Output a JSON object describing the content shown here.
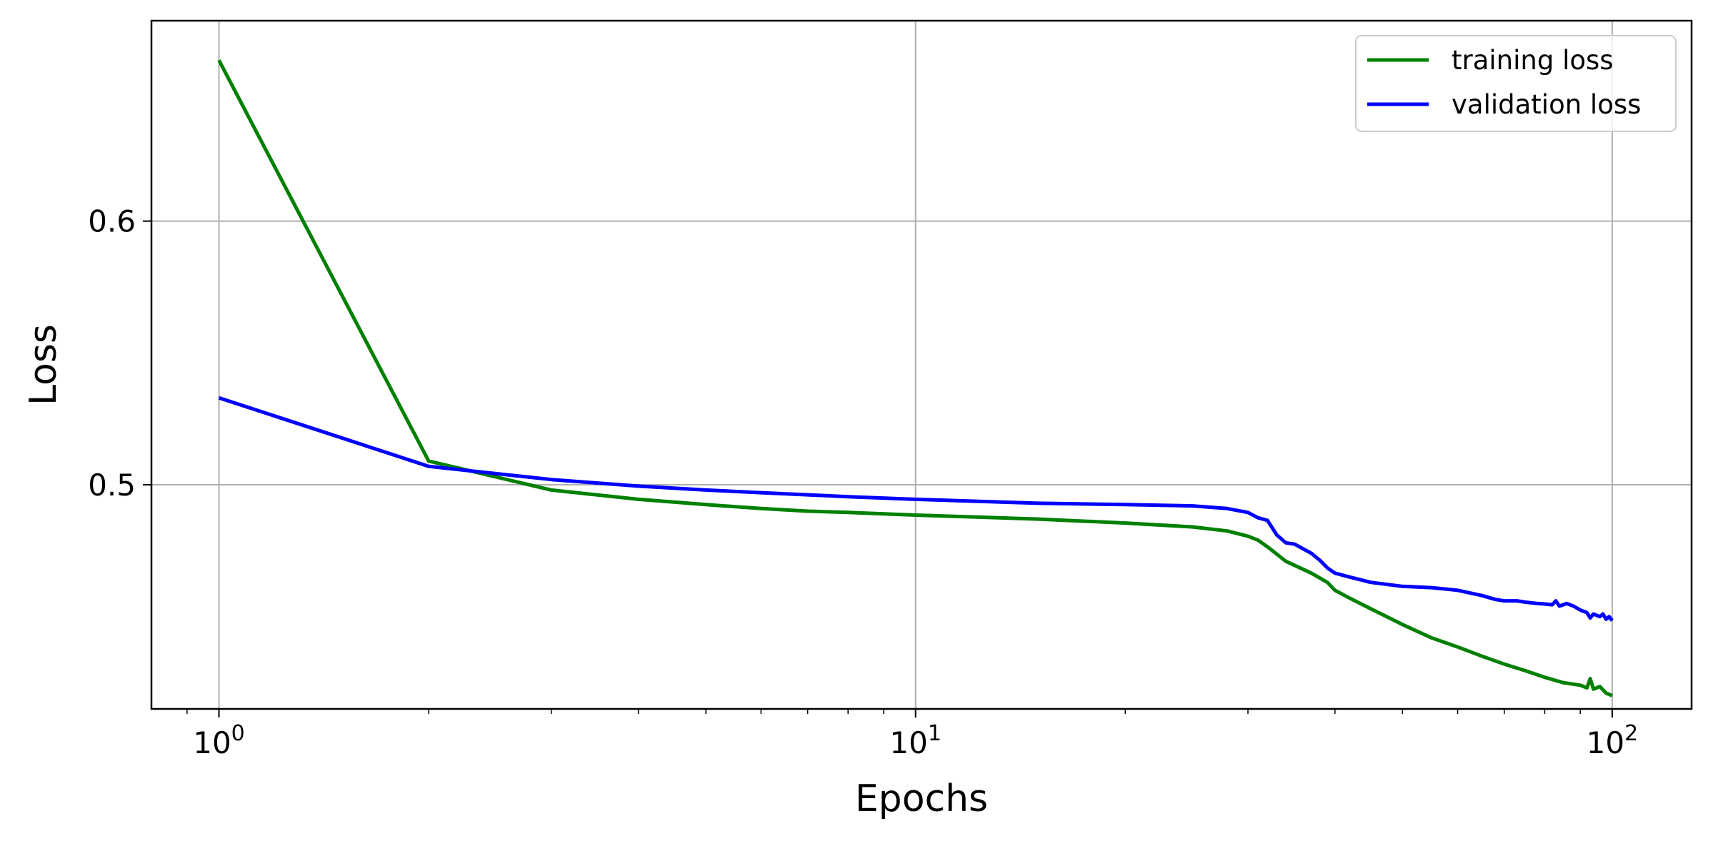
{
  "chart_data": {
    "type": "line",
    "xscale": "log",
    "xlabel": "Epochs",
    "ylabel": "Loss",
    "xlim": [
      0.8,
      130
    ],
    "ylim": [
      0.415,
      0.676
    ],
    "x_ticks": [
      {
        "value": 1,
        "base": "10",
        "exp": "0"
      },
      {
        "value": 10,
        "base": "10",
        "exp": "1"
      },
      {
        "value": 100,
        "base": "10",
        "exp": "2"
      }
    ],
    "y_ticks": [
      {
        "value": 0.5,
        "label": "0.5"
      },
      {
        "value": 0.6,
        "label": "0.6"
      }
    ],
    "grid": true,
    "legend_position": "top-right",
    "series": [
      {
        "name": "training loss",
        "color": "#008000",
        "points": [
          [
            1,
            0.661
          ],
          [
            2,
            0.509
          ],
          [
            3,
            0.498
          ],
          [
            4,
            0.4945
          ],
          [
            5,
            0.4925
          ],
          [
            6,
            0.491
          ],
          [
            7,
            0.49
          ],
          [
            8,
            0.4895
          ],
          [
            10,
            0.4885
          ],
          [
            15,
            0.487
          ],
          [
            20,
            0.4855
          ],
          [
            25,
            0.484
          ],
          [
            28,
            0.4825
          ],
          [
            30,
            0.4805
          ],
          [
            31,
            0.479
          ],
          [
            32,
            0.4765
          ],
          [
            34,
            0.471
          ],
          [
            37,
            0.4665
          ],
          [
            39,
            0.463
          ],
          [
            40,
            0.46
          ],
          [
            42,
            0.457
          ],
          [
            45,
            0.453
          ],
          [
            50,
            0.447
          ],
          [
            55,
            0.442
          ],
          [
            60,
            0.4385
          ],
          [
            65,
            0.435
          ],
          [
            70,
            0.432
          ],
          [
            75,
            0.4295
          ],
          [
            80,
            0.427
          ],
          [
            85,
            0.425
          ],
          [
            90,
            0.424
          ],
          [
            92,
            0.423
          ],
          [
            93,
            0.4265
          ],
          [
            94,
            0.4225
          ],
          [
            96,
            0.4235
          ],
          [
            98,
            0.421
          ],
          [
            100,
            0.42
          ]
        ]
      },
      {
        "name": "validation loss",
        "color": "#0000ff",
        "points": [
          [
            1,
            0.533
          ],
          [
            2,
            0.507
          ],
          [
            3,
            0.502
          ],
          [
            4,
            0.4995
          ],
          [
            5,
            0.498
          ],
          [
            6,
            0.497
          ],
          [
            8,
            0.4955
          ],
          [
            10,
            0.4945
          ],
          [
            15,
            0.493
          ],
          [
            20,
            0.4925
          ],
          [
            25,
            0.492
          ],
          [
            28,
            0.491
          ],
          [
            30,
            0.4895
          ],
          [
            31,
            0.4875
          ],
          [
            32,
            0.4865
          ],
          [
            33,
            0.481
          ],
          [
            34,
            0.478
          ],
          [
            35,
            0.4775
          ],
          [
            37,
            0.474
          ],
          [
            38,
            0.4715
          ],
          [
            39,
            0.4685
          ],
          [
            40,
            0.4665
          ],
          [
            42,
            0.465
          ],
          [
            45,
            0.463
          ],
          [
            50,
            0.4615
          ],
          [
            55,
            0.461
          ],
          [
            60,
            0.46
          ],
          [
            65,
            0.458
          ],
          [
            68,
            0.4565
          ],
          [
            70,
            0.456
          ],
          [
            73,
            0.456
          ],
          [
            75,
            0.4555
          ],
          [
            78,
            0.455
          ],
          [
            80,
            0.4548
          ],
          [
            82,
            0.4545
          ],
          [
            83,
            0.456
          ],
          [
            84,
            0.454
          ],
          [
            86,
            0.455
          ],
          [
            88,
            0.454
          ],
          [
            90,
            0.4525
          ],
          [
            92,
            0.4515
          ],
          [
            93,
            0.4495
          ],
          [
            94,
            0.451
          ],
          [
            95,
            0.4505
          ],
          [
            96,
            0.45
          ],
          [
            97,
            0.451
          ],
          [
            98,
            0.449
          ],
          [
            99,
            0.45
          ],
          [
            100,
            0.4485
          ]
        ]
      }
    ]
  }
}
